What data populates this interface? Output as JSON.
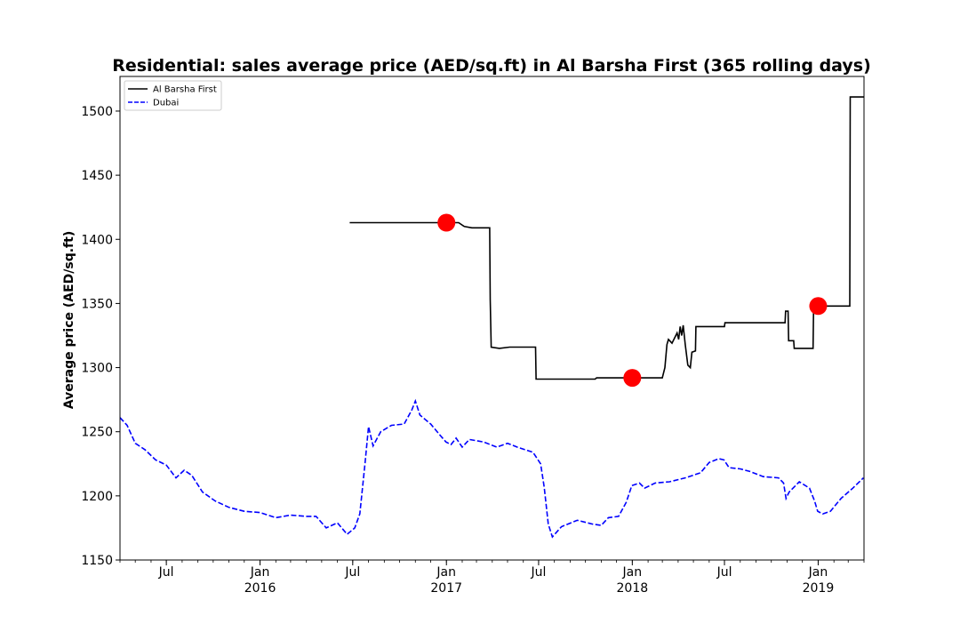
{
  "chart_data": {
    "type": "line",
    "title": "Residential: sales average price (AED/sq.ft) in Al Barsha First (365 rolling days)",
    "xlabel": "",
    "ylabel": "Average price (AED/sq.ft)",
    "xlim": [
      "2015-04-01",
      "2019-04-01"
    ],
    "ylim": [
      1150,
      1527
    ],
    "y_ticks": [
      1150,
      1200,
      1250,
      1300,
      1350,
      1400,
      1450,
      1500
    ],
    "x_ticks": [
      {
        "date": "2015-07-01",
        "label": "Jul",
        "year": ""
      },
      {
        "date": "2016-01-01",
        "label": "Jan",
        "year": "2016"
      },
      {
        "date": "2016-07-01",
        "label": "Jul",
        "year": ""
      },
      {
        "date": "2017-01-01",
        "label": "Jan",
        "year": "2017"
      },
      {
        "date": "2017-07-01",
        "label": "Jul",
        "year": ""
      },
      {
        "date": "2018-01-01",
        "label": "Jan",
        "year": "2018"
      },
      {
        "date": "2018-07-01",
        "label": "Jul",
        "year": ""
      },
      {
        "date": "2019-01-01",
        "label": "Jan",
        "year": "2019"
      }
    ],
    "legend": {
      "position": "top-left",
      "entries": [
        "Al Barsha First",
        "Dubai"
      ]
    },
    "grid": false,
    "series": [
      {
        "name": "Al Barsha First",
        "color": "#000000",
        "style": "solid",
        "points": [
          [
            "2016-06-25",
            1413
          ],
          [
            "2017-01-25",
            1413
          ],
          [
            "2017-02-05",
            1410
          ],
          [
            "2017-02-20",
            1409
          ],
          [
            "2017-03-27",
            1409
          ],
          [
            "2017-03-28",
            1353
          ],
          [
            "2017-03-30",
            1316
          ],
          [
            "2017-04-15",
            1315
          ],
          [
            "2017-05-05",
            1316
          ],
          [
            "2017-06-25",
            1316
          ],
          [
            "2017-06-26",
            1291
          ],
          [
            "2017-10-20",
            1291
          ],
          [
            "2017-10-23",
            1292
          ],
          [
            "2018-03-01",
            1292
          ],
          [
            "2018-03-06",
            1300
          ],
          [
            "2018-03-10",
            1318
          ],
          [
            "2018-03-13",
            1322
          ],
          [
            "2018-03-20",
            1319
          ],
          [
            "2018-03-30",
            1327
          ],
          [
            "2018-04-02",
            1322
          ],
          [
            "2018-04-05",
            1332
          ],
          [
            "2018-04-08",
            1325
          ],
          [
            "2018-04-11",
            1333
          ],
          [
            "2018-04-15",
            1318
          ],
          [
            "2018-04-20",
            1302
          ],
          [
            "2018-04-25",
            1300
          ],
          [
            "2018-04-28",
            1312
          ],
          [
            "2018-05-05",
            1313
          ],
          [
            "2018-05-06",
            1332
          ],
          [
            "2018-07-01",
            1332
          ],
          [
            "2018-07-02",
            1335
          ],
          [
            "2018-10-28",
            1335
          ],
          [
            "2018-10-29",
            1344
          ],
          [
            "2018-11-03",
            1344
          ],
          [
            "2018-11-04",
            1321
          ],
          [
            "2018-11-14",
            1321
          ],
          [
            "2018-11-15",
            1315
          ],
          [
            "2018-12-22",
            1315
          ],
          [
            "2018-12-23",
            1348
          ],
          [
            "2019-03-04",
            1348
          ],
          [
            "2019-03-05",
            1511
          ],
          [
            "2019-04-01",
            1511
          ]
        ]
      },
      {
        "name": "Dubai",
        "color": "#0000ff",
        "style": "dashed",
        "points": [
          [
            "2015-04-01",
            1261
          ],
          [
            "2015-04-15",
            1255
          ],
          [
            "2015-05-01",
            1241
          ],
          [
            "2015-05-20",
            1236
          ],
          [
            "2015-06-10",
            1228
          ],
          [
            "2015-07-01",
            1224
          ],
          [
            "2015-07-20",
            1214
          ],
          [
            "2015-08-05",
            1220
          ],
          [
            "2015-08-20",
            1216
          ],
          [
            "2015-09-10",
            1203
          ],
          [
            "2015-10-05",
            1196
          ],
          [
            "2015-11-01",
            1191
          ],
          [
            "2015-12-01",
            1188
          ],
          [
            "2016-01-01",
            1187
          ],
          [
            "2016-02-01",
            1183
          ],
          [
            "2016-03-01",
            1185
          ],
          [
            "2016-04-01",
            1184
          ],
          [
            "2016-04-20",
            1184
          ],
          [
            "2016-05-10",
            1175
          ],
          [
            "2016-06-01",
            1179
          ],
          [
            "2016-06-20",
            1170
          ],
          [
            "2016-07-05",
            1175
          ],
          [
            "2016-07-15",
            1186
          ],
          [
            "2016-07-25",
            1225
          ],
          [
            "2016-08-01",
            1254
          ],
          [
            "2016-08-10",
            1239
          ],
          [
            "2016-08-25",
            1250
          ],
          [
            "2016-09-15",
            1255
          ],
          [
            "2016-10-10",
            1256
          ],
          [
            "2016-10-25",
            1267
          ],
          [
            "2016-11-01",
            1274
          ],
          [
            "2016-11-10",
            1263
          ],
          [
            "2016-12-01",
            1256
          ],
          [
            "2016-12-20",
            1247
          ],
          [
            "2016-12-31",
            1242
          ],
          [
            "2017-01-10",
            1240
          ],
          [
            "2017-01-20",
            1245
          ],
          [
            "2017-02-01",
            1238
          ],
          [
            "2017-02-15",
            1244
          ],
          [
            "2017-03-15",
            1242
          ],
          [
            "2017-04-10",
            1238
          ],
          [
            "2017-05-01",
            1241
          ],
          [
            "2017-05-20",
            1238
          ],
          [
            "2017-06-20",
            1234
          ],
          [
            "2017-07-05",
            1225
          ],
          [
            "2017-07-12",
            1207
          ],
          [
            "2017-07-20",
            1178
          ],
          [
            "2017-07-28",
            1168
          ],
          [
            "2017-08-15",
            1176
          ],
          [
            "2017-09-15",
            1181
          ],
          [
            "2017-10-15",
            1178
          ],
          [
            "2017-11-01",
            1177
          ],
          [
            "2017-11-15",
            1183
          ],
          [
            "2017-12-05",
            1184
          ],
          [
            "2017-12-20",
            1195
          ],
          [
            "2017-12-31",
            1208
          ],
          [
            "2018-01-15",
            1210
          ],
          [
            "2018-01-25",
            1206
          ],
          [
            "2018-02-15",
            1210
          ],
          [
            "2018-03-15",
            1211
          ],
          [
            "2018-04-15",
            1214
          ],
          [
            "2018-05-15",
            1218
          ],
          [
            "2018-06-01",
            1226
          ],
          [
            "2018-06-20",
            1229
          ],
          [
            "2018-06-30",
            1228
          ],
          [
            "2018-07-10",
            1222
          ],
          [
            "2018-08-01",
            1221
          ],
          [
            "2018-08-20",
            1219
          ],
          [
            "2018-09-15",
            1215
          ],
          [
            "2018-10-15",
            1214
          ],
          [
            "2018-10-25",
            1210
          ],
          [
            "2018-10-30",
            1198
          ],
          [
            "2018-11-05",
            1203
          ],
          [
            "2018-11-25",
            1211
          ],
          [
            "2018-12-15",
            1206
          ],
          [
            "2018-12-25",
            1196
          ],
          [
            "2018-12-31",
            1188
          ],
          [
            "2019-01-10",
            1186
          ],
          [
            "2019-01-25",
            1188
          ],
          [
            "2019-02-15",
            1198
          ],
          [
            "2019-03-10",
            1206
          ],
          [
            "2019-03-31",
            1214
          ]
        ]
      }
    ],
    "markers": {
      "color": "#ff0000",
      "points": [
        [
          "2017-01-01",
          1413
        ],
        [
          "2018-01-01",
          1292
        ],
        [
          "2019-01-01",
          1348
        ]
      ]
    }
  }
}
